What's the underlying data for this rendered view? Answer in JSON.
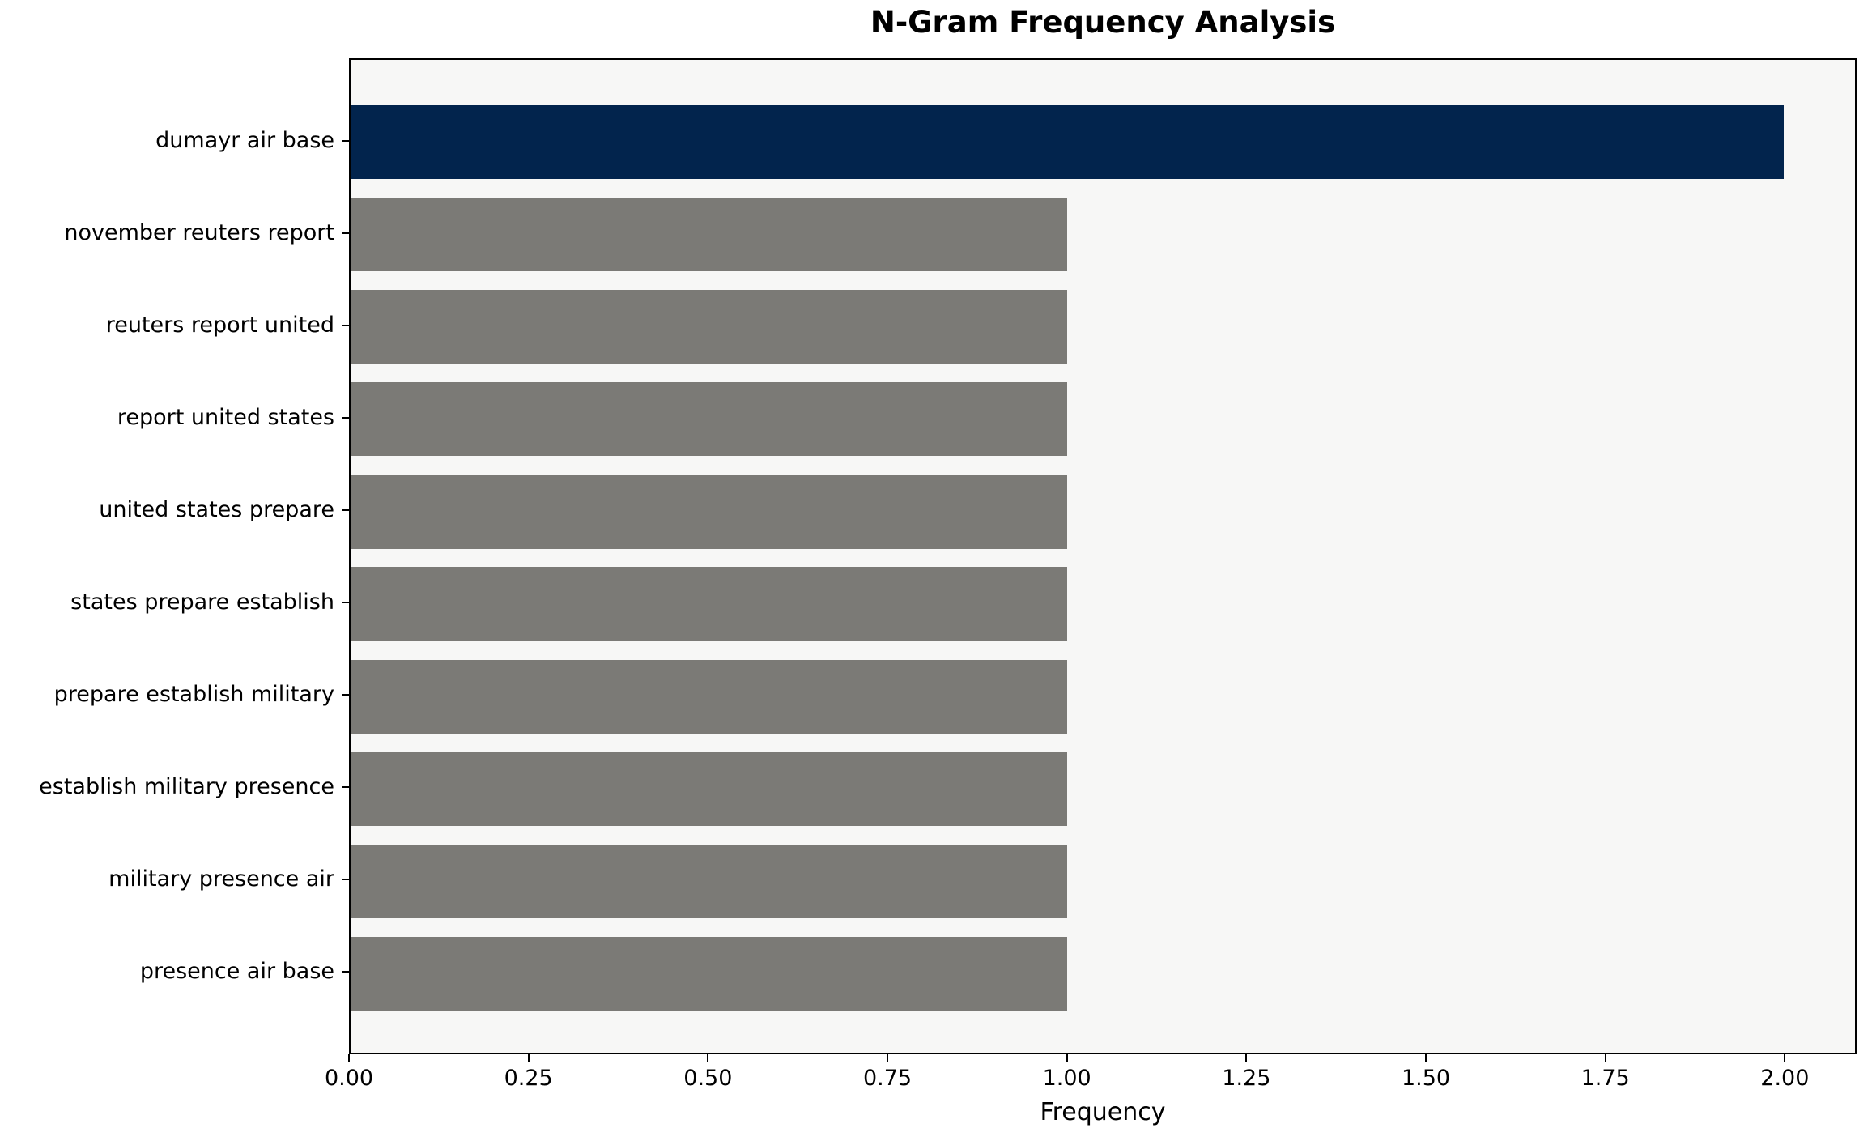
{
  "chart_data": {
    "type": "bar",
    "orientation": "horizontal",
    "title": "N-Gram Frequency Analysis",
    "xlabel": "Frequency",
    "ylabel": "",
    "categories": [
      "dumayr air base",
      "november reuters report",
      "reuters report united",
      "report united states",
      "united states prepare",
      "states prepare establish",
      "prepare establish military",
      "establish military presence",
      "military presence air",
      "presence air base"
    ],
    "values": [
      2.0,
      1.0,
      1.0,
      1.0,
      1.0,
      1.0,
      1.0,
      1.0,
      1.0,
      1.0
    ],
    "bar_colors": [
      "#02244d",
      "#7b7a76",
      "#7b7a76",
      "#7b7a76",
      "#7b7a76",
      "#7b7a76",
      "#7b7a76",
      "#7b7a76",
      "#7b7a76",
      "#7b7a76"
    ],
    "xlim": [
      0,
      2.1
    ],
    "xticks": [
      0,
      0.25,
      0.5,
      0.75,
      1.0,
      1.25,
      1.5,
      1.75,
      2.0
    ],
    "xtick_labels": [
      "0.00",
      "0.25",
      "0.50",
      "0.75",
      "1.00",
      "1.25",
      "1.50",
      "1.75",
      "2.00"
    ],
    "bar_height_fraction": 0.8,
    "grid": false,
    "legend": null,
    "plot_background": "#f7f7f6",
    "figure_background": "#ffffff",
    "spine_color": "#000000",
    "text_color": "#000000"
  }
}
